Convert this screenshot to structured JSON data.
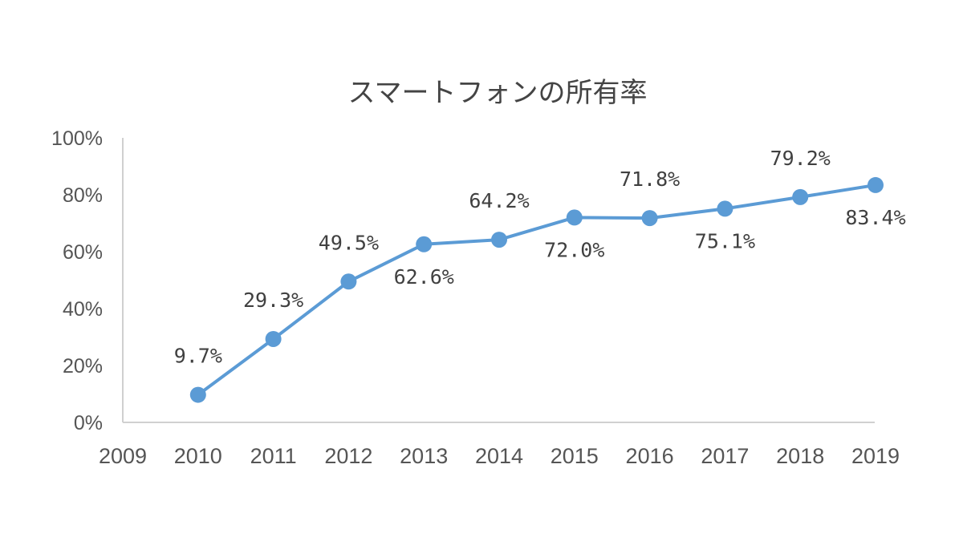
{
  "chart_data": {
    "type": "line",
    "title": "スマートフォンの所有率",
    "xlabel": "",
    "ylabel": "",
    "x_ticks": [
      "2009",
      "2010",
      "2011",
      "2012",
      "2013",
      "2014",
      "2015",
      "2016",
      "2017",
      "2018",
      "2019"
    ],
    "y_ticks": [
      "0%",
      "20%",
      "40%",
      "60%",
      "80%",
      "100%"
    ],
    "ylim": [
      0,
      100
    ],
    "grid": false,
    "legend": "none",
    "series": [
      {
        "color": "#5b9bd5",
        "points": [
          {
            "x": "2010",
            "y": 9.7,
            "label": "9.7%",
            "label_side": "above"
          },
          {
            "x": "2011",
            "y": 29.3,
            "label": "29.3%",
            "label_side": "above"
          },
          {
            "x": "2012",
            "y": 49.5,
            "label": "49.5%",
            "label_side": "above"
          },
          {
            "x": "2013",
            "y": 62.6,
            "label": "62.6%",
            "label_side": "below"
          },
          {
            "x": "2014",
            "y": 64.2,
            "label": "64.2%",
            "label_side": "above"
          },
          {
            "x": "2015",
            "y": 72.0,
            "label": "72.0%",
            "label_side": "below"
          },
          {
            "x": "2016",
            "y": 71.8,
            "label": "71.8%",
            "label_side": "above"
          },
          {
            "x": "2017",
            "y": 75.1,
            "label": "75.1%",
            "label_side": "below"
          },
          {
            "x": "2018",
            "y": 79.2,
            "label": "79.2%",
            "label_side": "above"
          },
          {
            "x": "2019",
            "y": 83.4,
            "label": "83.4%",
            "label_side": "below"
          }
        ]
      }
    ]
  }
}
